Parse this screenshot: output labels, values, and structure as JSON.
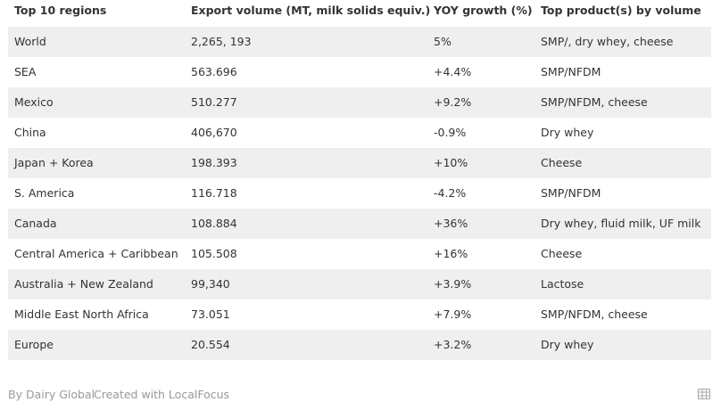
{
  "table": {
    "headers": [
      "Top 10 regions",
      "Export volume (MT, milk solids equiv.)",
      "YOY growth (%)",
      "Top product(s) by volume"
    ],
    "rows": [
      [
        "World",
        "2,265, 193",
        "5%",
        "SMP/, dry whey, cheese"
      ],
      [
        "SEA",
        "563.696",
        "+4.4%",
        "SMP/NFDM"
      ],
      [
        "Mexico",
        "510.277",
        "+9.2%",
        "SMP/NFDM, cheese"
      ],
      [
        "China",
        "406,670",
        "-0.9%",
        "Dry whey"
      ],
      [
        "Japan + Korea",
        "198.393",
        "+10%",
        "Cheese"
      ],
      [
        "S. America",
        "116.718",
        "-4.2%",
        "SMP/NFDM"
      ],
      [
        "Canada",
        "108.884",
        "+36%",
        "Dry whey, fluid milk, UF milk"
      ],
      [
        "Central America + Caribbean",
        "105.508",
        "+16%",
        "Cheese"
      ],
      [
        "Australia + New Zealand",
        "99,340",
        "+3.9%",
        "Lactose"
      ],
      [
        "Middle East North Africa",
        "73.051",
        "+7.9%",
        "SMP/NFDM, cheese"
      ],
      [
        "Europe",
        "20.554",
        "+3.2%",
        "Dry whey"
      ]
    ]
  },
  "footer": {
    "source": "By Dairy Global",
    "credit": "Created with LocalFocus"
  }
}
